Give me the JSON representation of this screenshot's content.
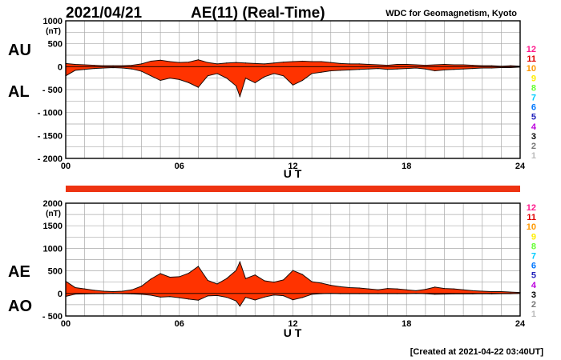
{
  "header": {
    "date": "2021/04/21",
    "title": "AE(11) (Real-Time)",
    "source": "WDC for Geomagnetism, Kyoto"
  },
  "footer": {
    "created": "[Created at 2021-04-22 03:40UT]"
  },
  "station_counts": {
    "labels": [
      "12",
      "11",
      "10",
      "9",
      "8",
      "7",
      "6",
      "5",
      "4",
      "3",
      "2",
      "1"
    ],
    "colors": [
      "#ff1a8c",
      "#e00000",
      "#ff9900",
      "#ffee00",
      "#66ff33",
      "#00ccff",
      "#0077ff",
      "#2222bb",
      "#bb00dd",
      "#000000",
      "#777777",
      "#bbbbbb"
    ]
  },
  "chart_data": [
    {
      "type": "area",
      "panel": "AU/AL",
      "labels": {
        "upper": "AU",
        "lower": "AL"
      },
      "unit": "(nT)",
      "xlabel": "U T",
      "xlim": [
        0,
        24
      ],
      "x_ticks": [
        0,
        6,
        12,
        18,
        24
      ],
      "x_tick_labels": [
        "00",
        "06",
        "12",
        "18",
        "24"
      ],
      "ylim": [
        -2000,
        1000
      ],
      "y_ticks": [
        1000,
        500,
        0,
        -500,
        -1000,
        -1500,
        -2000
      ],
      "y_tick_labels": [
        "1000",
        "500",
        "0",
        "- 500",
        "- 1000",
        "- 1500",
        "- 2000"
      ],
      "grid": true,
      "series": [
        {
          "name": "AU",
          "x": [
            0,
            0.5,
            1,
            1.5,
            2,
            2.5,
            3,
            3.5,
            4,
            4.5,
            5,
            5.5,
            6,
            6.5,
            7,
            7.5,
            8,
            8.5,
            9,
            9.5,
            10,
            10.5,
            11,
            11.5,
            12,
            12.5,
            13,
            13.5,
            14,
            14.5,
            15,
            15.5,
            16,
            16.5,
            17,
            17.5,
            18,
            18.5,
            19,
            19.5,
            20,
            20.5,
            21,
            21.5,
            22,
            22.5,
            23,
            23.5,
            24
          ],
          "values": [
            70,
            50,
            40,
            30,
            20,
            20,
            20,
            30,
            60,
            120,
            140,
            110,
            90,
            100,
            150,
            90,
            60,
            80,
            90,
            80,
            70,
            60,
            80,
            100,
            110,
            120,
            110,
            110,
            90,
            70,
            60,
            60,
            50,
            40,
            30,
            50,
            50,
            40,
            30,
            40,
            50,
            40,
            40,
            30,
            20,
            20,
            10,
            20,
            10
          ]
        },
        {
          "name": "AL",
          "x": [
            0,
            0.5,
            1,
            1.5,
            2,
            2.5,
            3,
            3.5,
            4,
            4.5,
            5,
            5.5,
            6,
            6.5,
            7,
            7.5,
            8,
            8.5,
            9,
            9.2,
            9.5,
            10,
            10.5,
            11,
            11.5,
            12,
            12.5,
            13,
            13.5,
            14,
            14.5,
            15,
            15.5,
            16,
            16.5,
            17,
            17.5,
            18,
            18.5,
            19,
            19.5,
            20,
            20.5,
            21,
            21.5,
            22,
            22.5,
            23,
            23.5,
            24
          ],
          "values": [
            -200,
            -80,
            -60,
            -40,
            -30,
            -20,
            -30,
            -50,
            -100,
            -200,
            -300,
            -250,
            -280,
            -350,
            -450,
            -200,
            -150,
            -250,
            -420,
            -650,
            -250,
            -350,
            -220,
            -150,
            -200,
            -400,
            -300,
            -150,
            -120,
            -90,
            -80,
            -70,
            -60,
            -50,
            -40,
            -60,
            -50,
            -40,
            -30,
            -50,
            -90,
            -70,
            -60,
            -50,
            -40,
            -30,
            -30,
            -20,
            -20,
            -10
          ]
        }
      ]
    },
    {
      "type": "area",
      "panel": "AE/AO",
      "labels": {
        "upper": "AE",
        "lower": "AO"
      },
      "unit": "(nT)",
      "xlabel": "U T",
      "xlim": [
        0,
        24
      ],
      "x_ticks": [
        0,
        6,
        12,
        18,
        24
      ],
      "x_tick_labels": [
        "00",
        "06",
        "12",
        "18",
        "24"
      ],
      "ylim": [
        -500,
        2000
      ],
      "y_ticks": [
        2000,
        1500,
        1000,
        500,
        0,
        -500
      ],
      "y_tick_labels": [
        "2000",
        "1500",
        "1000",
        "500",
        "0",
        "- 500"
      ],
      "grid": true,
      "series": [
        {
          "name": "AE",
          "x": [
            0,
            0.5,
            1,
            1.5,
            2,
            2.5,
            3,
            3.5,
            4,
            4.5,
            5,
            5.5,
            6,
            6.5,
            7,
            7.5,
            8,
            8.5,
            9,
            9.2,
            9.5,
            10,
            10.5,
            11,
            11.5,
            12,
            12.5,
            13,
            13.5,
            14,
            14.5,
            15,
            15.5,
            16,
            16.5,
            17,
            17.5,
            18,
            18.5,
            19,
            19.5,
            20,
            20.5,
            21,
            21.5,
            22,
            22.5,
            23,
            23.5,
            24
          ],
          "values": [
            270,
            130,
            100,
            70,
            50,
            40,
            50,
            80,
            160,
            320,
            440,
            360,
            370,
            450,
            600,
            290,
            210,
            330,
            510,
            700,
            330,
            410,
            280,
            250,
            300,
            510,
            420,
            260,
            230,
            180,
            150,
            130,
            120,
            100,
            80,
            110,
            100,
            80,
            60,
            90,
            140,
            110,
            100,
            80,
            60,
            50,
            40,
            40,
            30,
            20
          ]
        },
        {
          "name": "AO",
          "x": [
            0,
            0.5,
            1,
            1.5,
            2,
            2.5,
            3,
            3.5,
            4,
            4.5,
            5,
            5.5,
            6,
            6.5,
            7,
            7.5,
            8,
            8.5,
            9,
            9.2,
            9.5,
            10,
            10.5,
            11,
            11.5,
            12,
            12.5,
            13,
            13.5,
            14,
            14.5,
            15,
            15.5,
            16,
            16.5,
            17,
            17.5,
            18,
            18.5,
            19,
            19.5,
            20,
            20.5,
            21,
            21.5,
            22,
            22.5,
            23,
            23.5,
            24
          ],
          "values": [
            -65,
            -15,
            -10,
            -5,
            -5,
            0,
            -5,
            -10,
            -20,
            -40,
            -80,
            -70,
            -95,
            -125,
            -150,
            -55,
            -45,
            -85,
            -165,
            -280,
            -85,
            -145,
            -80,
            -35,
            -50,
            -140,
            -90,
            -20,
            -5,
            0,
            -5,
            -5,
            -5,
            -5,
            -5,
            -5,
            -5,
            -5,
            0,
            -5,
            -20,
            -15,
            -10,
            -10,
            -10,
            -5,
            -10,
            -5,
            -5,
            0
          ]
        }
      ]
    }
  ]
}
